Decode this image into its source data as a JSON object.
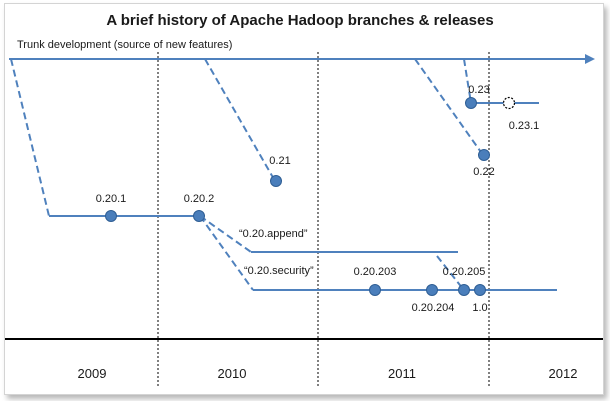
{
  "title": "A brief history of Apache Hadoop branches & releases",
  "trunk_label": "Trunk development (source of new features)",
  "colors": {
    "line": "#4f81bd",
    "node": "#4a7ebb",
    "node_stroke": "#2f5e94",
    "axis": "#000000",
    "divider": "#000000"
  },
  "years": [
    "2009",
    "2010",
    "2011",
    "2012"
  ],
  "branch_labels": {
    "append": "“0.20.append”",
    "security": "“0.20.security”"
  },
  "releases": {
    "r0_20_1": "0.20.1",
    "r0_20_2": "0.20.2",
    "r0_21": "0.21",
    "r0_20_203": "0.20.203",
    "r0_20_204": "0.20.204",
    "r0_20_205": "0.20.205",
    "r1_0": "1.0",
    "r0_23": "0.23",
    "r0_23_1": "0.23.1",
    "r0_22": "0.22"
  }
}
